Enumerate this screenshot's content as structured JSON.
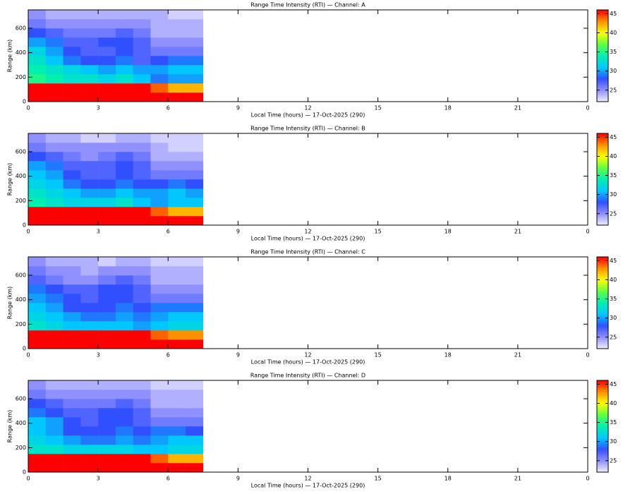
{
  "chart_data": [
    {
      "type": "heatmap",
      "title": "Range Time Intensity (RTI) — Channel: A",
      "xlabel": "Local Time (hours) — 17-Oct-2025 (290)",
      "ylabel": "Range (km)",
      "xlim": [
        0,
        24
      ],
      "ylim": [
        0,
        750
      ],
      "xticks": [
        0,
        3,
        6,
        9,
        12,
        15,
        18,
        21,
        {
          "value": 24,
          "label": "0"
        }
      ],
      "yticks": [
        0,
        200,
        400,
        600
      ],
      "xbins": [
        0,
        0.75,
        1.5,
        2.25,
        3,
        3.75,
        4.5,
        5.25,
        6,
        6.75,
        7.5
      ],
      "ybins": [
        0,
        75,
        150,
        225,
        300,
        375,
        450,
        525,
        600,
        675,
        750
      ],
      "z": [
        [
          46,
          46,
          46,
          46,
          46,
          46,
          46,
          46,
          46,
          46
        ],
        [
          46,
          46,
          46,
          46,
          46,
          46,
          46,
          44,
          42,
          42
        ],
        [
          35,
          34,
          33,
          33,
          32,
          33,
          31,
          29,
          30,
          30
        ],
        [
          34,
          33,
          32,
          31,
          30,
          31,
          30,
          30,
          31,
          31
        ],
        [
          33,
          31,
          29,
          28,
          28,
          29,
          27,
          28,
          29,
          29
        ],
        [
          32,
          30,
          28,
          27,
          27,
          28,
          27,
          26,
          26,
          26
        ],
        [
          30,
          29,
          27,
          27,
          28,
          28,
          27,
          25,
          25,
          25
        ],
        [
          28,
          27,
          26,
          26,
          26,
          27,
          26,
          24,
          24,
          24
        ],
        [
          26,
          25,
          25,
          25,
          25,
          25,
          25,
          24,
          24,
          24
        ],
        [
          25,
          24,
          24,
          24,
          24,
          24,
          24,
          24,
          23,
          23
        ]
      ],
      "clim": [
        22,
        46
      ],
      "cticks": [
        25,
        30,
        35,
        40,
        45
      ],
      "colormap": [
        "#f2f0ff",
        "#9090ff",
        "#3050ff",
        "#00c8ff",
        "#00f0b0",
        "#60ff40",
        "#ffff00",
        "#ff9000",
        "#ff0000"
      ]
    },
    {
      "type": "heatmap",
      "title": "Range Time Intensity (RTI) — Channel: B",
      "xlabel": "Local Time (hours) — 17-Oct-2025 (290)",
      "ylabel": "Range (km)",
      "xlim": [
        0,
        24
      ],
      "ylim": [
        0,
        750
      ],
      "xticks": [
        0,
        3,
        6,
        9,
        12,
        15,
        18,
        21,
        {
          "value": 24,
          "label": "0"
        }
      ],
      "yticks": [
        0,
        200,
        400,
        600
      ],
      "xbins": [
        0,
        0.75,
        1.5,
        2.25,
        3,
        3.75,
        4.5,
        5.25,
        6,
        6.75,
        7.5
      ],
      "ybins": [
        0,
        75,
        150,
        225,
        300,
        375,
        450,
        525,
        600,
        675,
        750
      ],
      "z": [
        [
          46,
          46,
          46,
          46,
          46,
          46,
          46,
          46,
          46,
          46
        ],
        [
          46,
          46,
          46,
          46,
          46,
          46,
          46,
          44,
          42,
          42
        ],
        [
          34,
          33,
          32,
          32,
          32,
          33,
          31,
          30,
          31,
          31
        ],
        [
          33,
          32,
          31,
          30,
          30,
          31,
          30,
          30,
          31,
          30
        ],
        [
          32,
          31,
          29,
          28,
          28,
          29,
          28,
          28,
          29,
          28
        ],
        [
          31,
          30,
          28,
          27,
          27,
          28,
          27,
          26,
          26,
          26
        ],
        [
          30,
          29,
          27,
          27,
          27,
          28,
          27,
          25,
          25,
          25
        ],
        [
          28,
          27,
          26,
          25,
          26,
          27,
          26,
          24,
          24,
          24
        ],
        [
          26,
          25,
          25,
          25,
          25,
          25,
          25,
          24,
          23,
          23
        ],
        [
          25,
          24,
          24,
          23,
          23,
          24,
          24,
          23,
          23,
          23
        ]
      ],
      "clim": [
        22,
        46
      ],
      "cticks": [
        25,
        30,
        35,
        40,
        45
      ],
      "colormap": [
        "#f2f0ff",
        "#9090ff",
        "#3050ff",
        "#00c8ff",
        "#00f0b0",
        "#60ff40",
        "#ffff00",
        "#ff9000",
        "#ff0000"
      ]
    },
    {
      "type": "heatmap",
      "title": "Range Time Intensity (RTI) — Channel: C",
      "xlabel": "Local Time (hours) — 17-Oct-2025 (290)",
      "ylabel": "Range (km)",
      "xlim": [
        0,
        24
      ],
      "ylim": [
        0,
        750
      ],
      "xticks": [
        0,
        3,
        6,
        9,
        12,
        15,
        18,
        21,
        {
          "value": 24,
          "label": "0"
        }
      ],
      "yticks": [
        0,
        200,
        400,
        600
      ],
      "xbins": [
        0,
        0.75,
        1.5,
        2.25,
        3,
        3.75,
        4.5,
        5.25,
        6,
        6.75,
        7.5
      ],
      "ybins": [
        0,
        75,
        150,
        225,
        300,
        375,
        450,
        525,
        600,
        675,
        750
      ],
      "z": [
        [
          46,
          46,
          46,
          46,
          46,
          46,
          46,
          46,
          46,
          46
        ],
        [
          46,
          46,
          46,
          46,
          46,
          46,
          46,
          44,
          43,
          43
        ],
        [
          33,
          32,
          31,
          31,
          31,
          31,
          30,
          31,
          32,
          32
        ],
        [
          32,
          31,
          30,
          29,
          29,
          30,
          29,
          30,
          31,
          31
        ],
        [
          31,
          30,
          28,
          28,
          28,
          29,
          28,
          29,
          29,
          29
        ],
        [
          30,
          29,
          28,
          27,
          28,
          28,
          27,
          26,
          26,
          26
        ],
        [
          29,
          28,
          27,
          27,
          28,
          28,
          27,
          25,
          25,
          25
        ],
        [
          27,
          26,
          25,
          25,
          26,
          27,
          26,
          24,
          24,
          24
        ],
        [
          26,
          25,
          25,
          24,
          25,
          25,
          25,
          24,
          24,
          24
        ],
        [
          25,
          24,
          24,
          24,
          23,
          24,
          24,
          23,
          23,
          23
        ]
      ],
      "clim": [
        22,
        46
      ],
      "cticks": [
        25,
        30,
        35,
        40,
        45
      ],
      "colormap": [
        "#f2f0ff",
        "#9090ff",
        "#3050ff",
        "#00c8ff",
        "#00f0b0",
        "#60ff40",
        "#ffff00",
        "#ff9000",
        "#ff0000"
      ]
    },
    {
      "type": "heatmap",
      "title": "Range Time Intensity (RTI) — Channel: D",
      "xlabel": "Local Time (hours) — 17-Oct-2025 (290)",
      "ylabel": "Range (km)",
      "xlim": [
        0,
        24
      ],
      "ylim": [
        0,
        750
      ],
      "xticks": [
        0,
        3,
        6,
        9,
        12,
        15,
        18,
        21,
        {
          "value": 24,
          "label": "0"
        }
      ],
      "yticks": [
        0,
        200,
        400,
        600
      ],
      "xbins": [
        0,
        0.75,
        1.5,
        2.25,
        3,
        3.75,
        4.5,
        5.25,
        6,
        6.75,
        7.5
      ],
      "ybins": [
        0,
        75,
        150,
        225,
        300,
        375,
        450,
        525,
        600,
        675,
        750
      ],
      "z": [
        [
          46,
          46,
          46,
          46,
          46,
          46,
          46,
          46,
          46,
          46
        ],
        [
          46,
          46,
          46,
          46,
          46,
          46,
          46,
          44,
          42,
          42
        ],
        [
          33,
          33,
          32,
          32,
          32,
          32,
          31,
          31,
          32,
          32
        ],
        [
          32,
          31,
          30,
          29,
          29,
          30,
          29,
          30,
          31,
          31
        ],
        [
          31,
          30,
          28,
          28,
          28,
          29,
          28,
          29,
          29,
          28
        ],
        [
          31,
          30,
          28,
          27,
          28,
          28,
          27,
          26,
          26,
          26
        ],
        [
          29,
          28,
          27,
          27,
          28,
          28,
          27,
          25,
          25,
          25
        ],
        [
          28,
          27,
          26,
          26,
          26,
          27,
          26,
          24,
          24,
          24
        ],
        [
          26,
          25,
          25,
          25,
          25,
          25,
          25,
          24,
          24,
          24
        ],
        [
          25,
          24,
          24,
          24,
          24,
          24,
          24,
          23,
          23,
          23
        ]
      ],
      "clim": [
        22,
        46
      ],
      "cticks": [
        25,
        30,
        35,
        40,
        45
      ],
      "colormap": [
        "#f2f0ff",
        "#9090ff",
        "#3050ff",
        "#00c8ff",
        "#00f0b0",
        "#60ff40",
        "#ffff00",
        "#ff9000",
        "#ff0000"
      ]
    }
  ]
}
